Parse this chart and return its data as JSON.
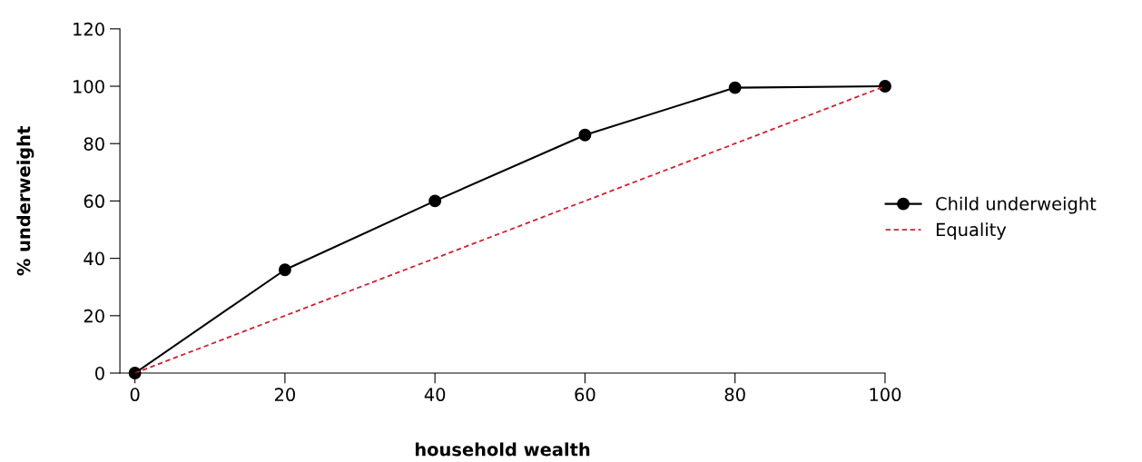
{
  "chart_data": {
    "type": "line",
    "xlabel": "household wealth",
    "ylabel": "% underweight",
    "x": [
      0,
      20,
      40,
      60,
      80,
      100
    ],
    "series": [
      {
        "name": "Child underweight",
        "color": "#000000",
        "values": [
          0,
          36,
          60,
          83,
          99.5,
          100
        ],
        "marker": "circle",
        "line_style": "solid"
      },
      {
        "name": "Equality",
        "color": "#cc2233",
        "values": [
          0,
          20,
          40,
          60,
          80,
          100
        ],
        "marker": "none",
        "line_style": "dashed"
      }
    ],
    "xlim": [
      -2,
      100
    ],
    "xticks": [
      0,
      20,
      40,
      60,
      80,
      100
    ],
    "ylim": [
      0,
      120
    ],
    "yticks": [
      0,
      20,
      40,
      60,
      80,
      100,
      120
    ],
    "grid": false,
    "legend": "right"
  }
}
